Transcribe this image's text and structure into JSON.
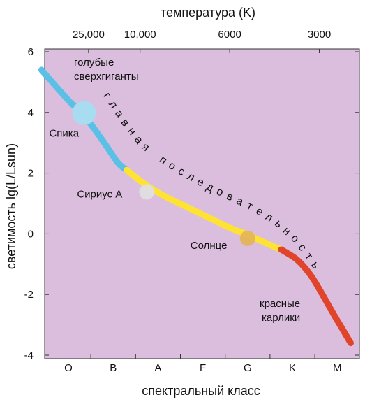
{
  "chart_data": {
    "type": "line",
    "title": "",
    "xlabel": "спектральный класс",
    "ylabel": "светимость lg(L/Lsun)",
    "top_axis_label": "температура (K)",
    "ylim": [
      -4,
      6
    ],
    "y_ticks": [
      "6",
      "4",
      "2",
      "0",
      "-2",
      "-4"
    ],
    "spectral_classes": [
      "O",
      "B",
      "A",
      "F",
      "G",
      "K",
      "M"
    ],
    "temperature_ticks": [
      "25,000",
      "10,000",
      "6000",
      "3000"
    ],
    "background_color": "#dbbedd",
    "series": [
      {
        "color": "#5bc0e6",
        "points": [
          [
            -0.6,
            5.4
          ],
          [
            0.0,
            4.4
          ],
          [
            0.35,
            3.9
          ],
          [
            0.8,
            3.0
          ],
          [
            1.1,
            2.35
          ],
          [
            1.3,
            2.1
          ]
        ]
      },
      {
        "color": "#fee334",
        "points": [
          [
            1.3,
            2.1
          ],
          [
            1.6,
            1.75
          ],
          [
            1.9,
            1.45
          ],
          [
            2.2,
            1.2
          ],
          [
            2.55,
            0.95
          ],
          [
            2.9,
            0.7
          ],
          [
            3.25,
            0.45
          ],
          [
            3.6,
            0.2
          ],
          [
            3.95,
            0.0
          ],
          [
            4.25,
            -0.2
          ],
          [
            4.55,
            -0.4
          ],
          [
            4.75,
            -0.52
          ]
        ]
      },
      {
        "color": "#e0442a",
        "points": [
          [
            4.75,
            -0.52
          ],
          [
            5.1,
            -0.85
          ],
          [
            5.4,
            -1.35
          ],
          [
            5.65,
            -1.95
          ],
          [
            5.9,
            -2.6
          ],
          [
            6.1,
            -3.1
          ],
          [
            6.3,
            -3.6
          ]
        ]
      }
    ],
    "stars": [
      {
        "name": "Спика",
        "x": 0.35,
        "y": 3.98,
        "size": "large",
        "color": "#a8dcf0"
      },
      {
        "name": "Сириус А",
        "x": 1.75,
        "y": 1.38,
        "size": "small",
        "color": "#e0e0e2"
      },
      {
        "name": "Солнце",
        "x": 4.0,
        "y": -0.15,
        "size": "small",
        "color": "#e3b556"
      }
    ],
    "annotations": {
      "blue_supergiants": [
        "голубые",
        "сверхгиганты"
      ],
      "red_dwarfs": [
        "красные",
        "карлики"
      ],
      "main_sequence": "главная последовательность"
    }
  }
}
